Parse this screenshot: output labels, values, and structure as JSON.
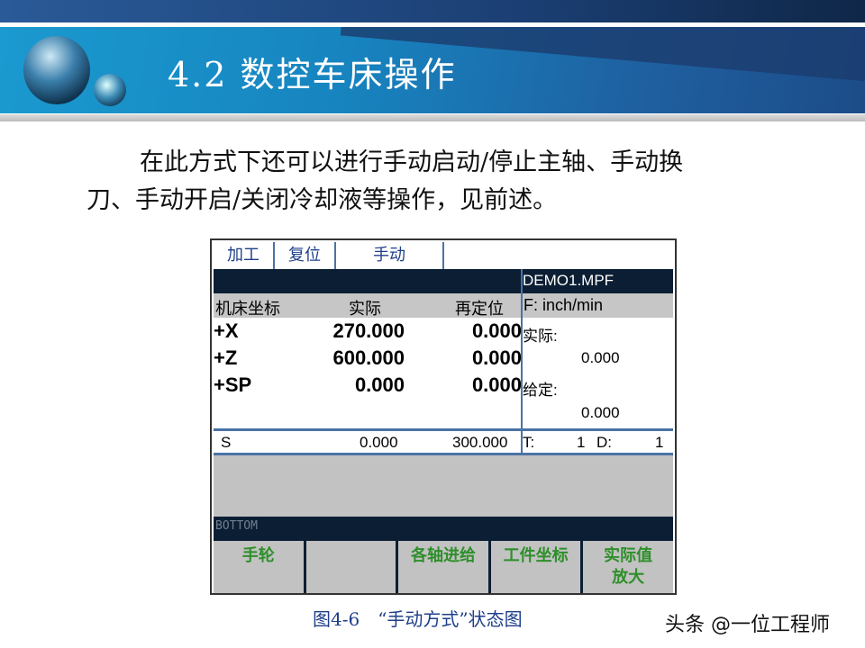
{
  "slide": {
    "title": "4.2  数控车床操作",
    "paragraph": [
      "在此方式下还可以进行手动启动/停止主轴、手动换",
      "刀、手动开启/关闭冷却液等操作，见前述。"
    ],
    "caption": "图4-6　“手动方式”状态图",
    "watermark": "头条 @一位工程师"
  },
  "screen": {
    "tabs": [
      "加工",
      "复位",
      "手动",
      ""
    ],
    "program": "DEMO1.MPF",
    "header": {
      "coord": "机床坐标",
      "actual": "实际",
      "repos": "再定位",
      "feed_unit": "F: inch/min"
    },
    "rows": [
      {
        "axis": "+X",
        "actual": "270.000",
        "repos": "0.000"
      },
      {
        "axis": "+Z",
        "actual": "600.000",
        "repos": "0.000"
      },
      {
        "axis": "+SP",
        "actual": "0.000",
        "repos": "0.000"
      }
    ],
    "feed": {
      "actual_label": "实际:",
      "actual_value": "0.000",
      "set_label": "给定:",
      "set_value": "0.000"
    },
    "spindle": {
      "label": "S",
      "actual": "0.000",
      "set": "300.000",
      "t_label": "T:",
      "t_value": "1",
      "d_label": "D:",
      "d_value": "1"
    },
    "status": "BOTTOM",
    "softkeys": [
      "手轮",
      "",
      "各轴进给",
      "工件坐标",
      "实际值\n放大"
    ]
  }
}
